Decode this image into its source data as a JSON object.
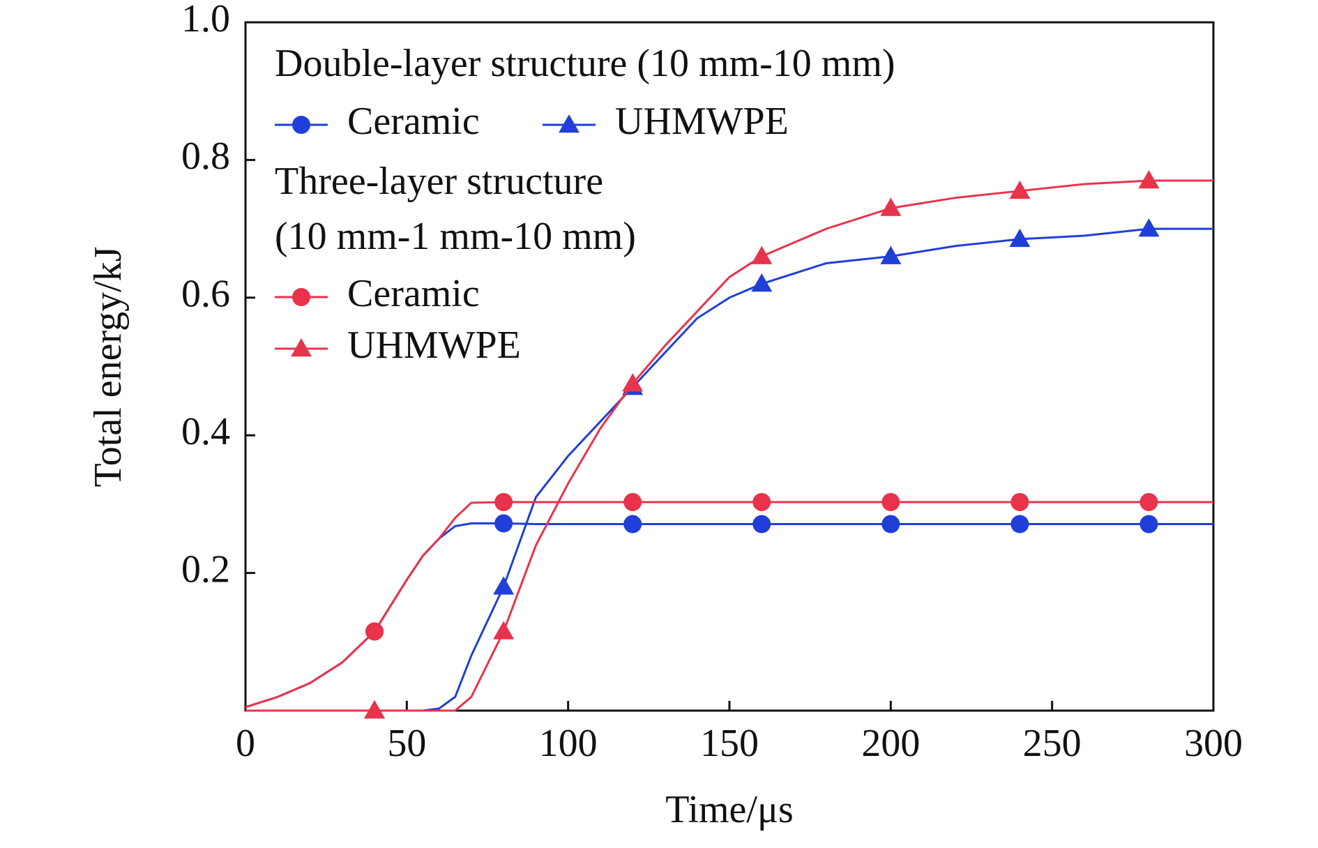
{
  "chart_data": {
    "type": "line",
    "xlabel": "Time/μs",
    "ylabel": "Total energy/kJ",
    "x": [
      0,
      10,
      20,
      30,
      40,
      50,
      55,
      60,
      65,
      70,
      80,
      90,
      100,
      110,
      120,
      130,
      140,
      150,
      160,
      180,
      200,
      220,
      240,
      260,
      280,
      300
    ],
    "marker_x": [
      40,
      80,
      120,
      160,
      200,
      240,
      280
    ],
    "series": [
      {
        "name": "Ceramic",
        "color": "#1f3fd8",
        "marker": "circle",
        "values": [
          0.005,
          0.02,
          0.04,
          0.07,
          0.115,
          0.19,
          0.225,
          0.25,
          0.268,
          0.272,
          0.272,
          0.271,
          0.271,
          0.271,
          0.271,
          0.271,
          0.271,
          0.271,
          0.271,
          0.271,
          0.271,
          0.271,
          0.271,
          0.271,
          0.271,
          0.271
        ]
      },
      {
        "name": "UHMWPE",
        "color": "#1f3fd8",
        "marker": "triangle",
        "values": [
          0,
          0,
          0,
          0,
          0,
          0,
          0,
          0.003,
          0.02,
          0.08,
          0.18,
          0.31,
          0.37,
          0.42,
          0.47,
          0.52,
          0.57,
          0.6,
          0.62,
          0.65,
          0.66,
          0.675,
          0.685,
          0.69,
          0.7,
          0.7
        ]
      },
      {
        "name": "Ceramic",
        "color": "#e8334a",
        "marker": "circle",
        "values": [
          0.005,
          0.02,
          0.04,
          0.07,
          0.115,
          0.19,
          0.225,
          0.25,
          0.28,
          0.302,
          0.303,
          0.303,
          0.303,
          0.303,
          0.303,
          0.303,
          0.303,
          0.303,
          0.303,
          0.303,
          0.303,
          0.303,
          0.303,
          0.303,
          0.303,
          0.303
        ]
      },
      {
        "name": "UHMWPE",
        "color": "#e8334a",
        "marker": "triangle",
        "values": [
          0,
          0,
          0,
          0,
          0,
          0,
          0,
          0,
          0,
          0.02,
          0.115,
          0.24,
          0.33,
          0.41,
          0.475,
          0.53,
          0.58,
          0.63,
          0.66,
          0.7,
          0.73,
          0.745,
          0.755,
          0.765,
          0.77,
          0.77
        ]
      }
    ],
    "legend_titles": [
      [
        "Double-layer structure (10 mm-10 mm)"
      ],
      [
        "Three-layer structure",
        "(10 mm-1 mm-10 mm)"
      ]
    ],
    "xlim": [
      0,
      300
    ],
    "xticks": [
      0,
      50,
      100,
      150,
      200,
      250,
      300
    ],
    "ylim": [
      0,
      1.0
    ],
    "yticks": [
      0.2,
      0.4,
      0.6,
      0.8,
      {
        "value": 1.0,
        "label": "1.0"
      }
    ],
    "grid": false
  }
}
